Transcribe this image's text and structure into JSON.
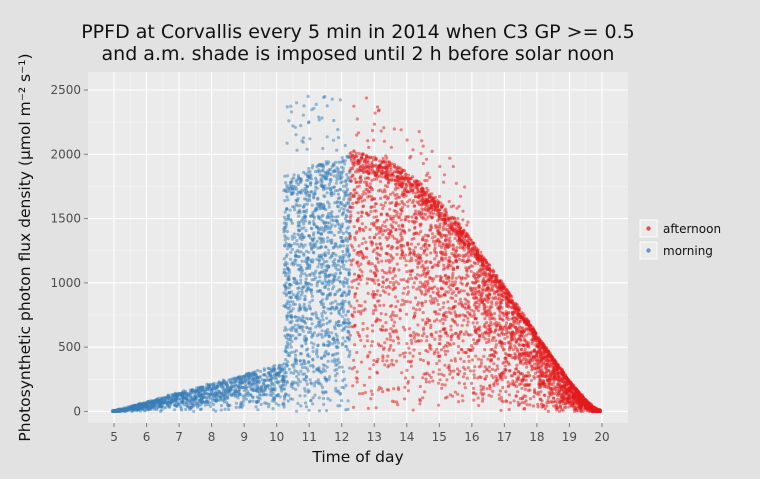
{
  "chart_data": {
    "type": "scatter",
    "title": [
      "PPFD at Corvallis every 5 min in 2014 when C3 GP >= 0.5",
      "and a.m. shade is imposed until 2 h before solar noon"
    ],
    "xlabel": "Time of day",
    "ylabel": "Photosynthetic photon flux density (μmol m⁻² s⁻¹)",
    "xlim": [
      4.2,
      20.8
    ],
    "ylim": [
      -90,
      2640
    ],
    "x_ticks": [
      5,
      6,
      7,
      8,
      9,
      10,
      11,
      12,
      13,
      14,
      15,
      16,
      17,
      18,
      19,
      20
    ],
    "x_tick_labels": [
      "5",
      "6",
      "7",
      "8",
      "9",
      "10",
      "11",
      "12",
      "13",
      "14",
      "15",
      "16",
      "17",
      "18",
      "19",
      "20"
    ],
    "y_ticks": [
      0,
      500,
      1000,
      1500,
      2000,
      2500
    ],
    "y_tick_labels": [
      "0",
      "500",
      "1000",
      "1500",
      "2000",
      "2500"
    ],
    "grid": true,
    "legend_position": "right",
    "background": "#ebebeb",
    "series": [
      {
        "name": "afternoon",
        "color": "#e41a1c",
        "x_range": [
          12.25,
          20.0
        ],
        "shape": "PPFD rises to about 2000 at 12.25 h then declines smoothly to near 0 by about 19.5-20 h; points spread from 0 up to the clear-sky envelope, a few outliers up to about 2500 between 12.5 and 14.5 h"
      },
      {
        "name": "morning",
        "color": "#377eb8",
        "x_range": [
          4.9,
          12.25
        ],
        "shape": "Shaded low values from about 5 h rising to about 350 by 10.2 h; between 10.2 and 12.25 h points spread from 0 up to about 2000, a few outliers up to about 2450"
      }
    ]
  }
}
